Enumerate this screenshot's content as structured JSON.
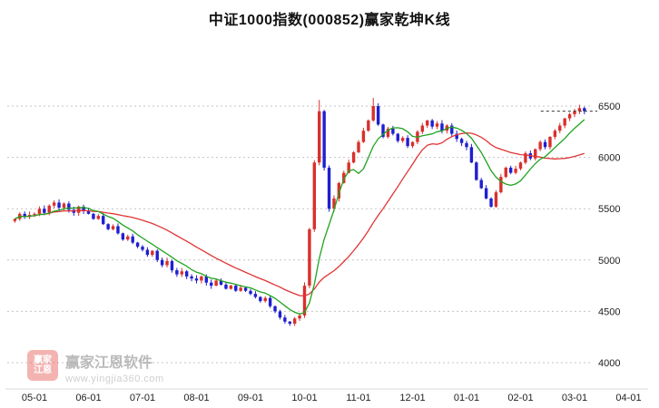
{
  "title": "中证1000指数(000852)赢家乾坤K线",
  "watermark": {
    "logo_line1": "赢家",
    "logo_line2": "江恩",
    "name": "赢家江恩软件",
    "url": "www.yingjia360.com"
  },
  "chart_data": {
    "type": "candlestick",
    "index_name": "中证1000指数",
    "symbol": "000852",
    "title": "中证1000指数(000852)赢家乾坤K线",
    "x_labels": [
      "05-01",
      "06-01",
      "07-01",
      "08-01",
      "09-01",
      "10-01",
      "11-01",
      "12-01",
      "01-01",
      "02-01",
      "03-01",
      "04-01"
    ],
    "y_ticks": [
      6500,
      6000,
      5500,
      5000,
      4500,
      4000
    ],
    "ylim": [
      3750,
      7100
    ],
    "grid": "horizontal-dotted",
    "first_open": 5380,
    "closes": [
      5400,
      5450,
      5420,
      5440,
      5450,
      5500,
      5460,
      5530,
      5560,
      5510,
      5550,
      5490,
      5460,
      5520,
      5480,
      5450,
      5400,
      5430,
      5350,
      5300,
      5330,
      5260,
      5200,
      5230,
      5170,
      5130,
      5100,
      5050,
      5090,
      5000,
      4950,
      4990,
      4900,
      4860,
      4890,
      4840,
      4820,
      4800,
      4840,
      4780,
      4750,
      4800,
      4760,
      4720,
      4750,
      4700,
      4730,
      4700,
      4670,
      4640,
      4600,
      4630,
      4550,
      4500,
      4440,
      4400,
      4380,
      4430,
      4460,
      4750,
      5300,
      5950,
      6450,
      5900,
      5500,
      5600,
      5750,
      5850,
      5950,
      6050,
      6150,
      6260,
      6360,
      6500,
      6320,
      6200,
      6280,
      6230,
      6160,
      6190,
      6110,
      6150,
      6250,
      6310,
      6360,
      6300,
      6330,
      6260,
      6310,
      6230,
      6180,
      6140,
      6100,
      5950,
      5780,
      5700,
      5600,
      5520,
      5660,
      5810,
      5900,
      5850,
      5890,
      5950,
      6040,
      5990,
      6080,
      6150,
      6100,
      6200,
      6260,
      6310,
      6380,
      6420,
      6450,
      6480,
      6450
    ],
    "spike_highs": {
      "62": 6560,
      "73": 6580
    },
    "last_price": 6450,
    "ma_fast_period": 8,
    "ma_slow_period": 24,
    "colors": {
      "up": "#d9302c",
      "down": "#1f1fd0",
      "ma_fast": "#1fa31f",
      "ma_slow": "#e03434",
      "grid": "#c4c4c4",
      "axis_text": "#222222",
      "last_price_line": "#333333"
    }
  }
}
